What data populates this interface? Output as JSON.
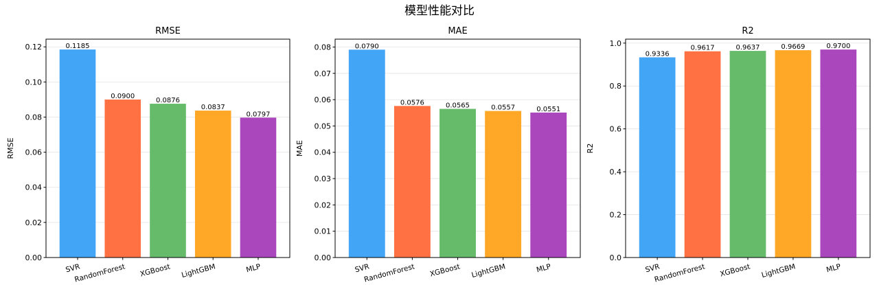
{
  "figure": {
    "suptitle": "模型性能对比"
  },
  "chart_data": [
    {
      "type": "bar",
      "title": "RMSE",
      "xlabel": "",
      "ylabel": "RMSE",
      "categories": [
        "SVR",
        "RandomForest",
        "XGBoost",
        "LightGBM",
        "MLP"
      ],
      "values": [
        0.1185,
        0.09,
        0.0876,
        0.0837,
        0.0797
      ],
      "value_labels": [
        "0.1185",
        "0.0900",
        "0.0876",
        "0.0837",
        "0.0797"
      ],
      "colors": [
        "#42a5f5",
        "#ff7043",
        "#66bb6a",
        "#ffa726",
        "#ab47bc"
      ],
      "ylim": [
        0,
        0.1244
      ],
      "yticks": [
        0,
        0.02,
        0.04,
        0.06,
        0.08,
        0.1,
        0.12
      ],
      "ytick_labels": [
        "0.00",
        "0.02",
        "0.04",
        "0.06",
        "0.08",
        "0.10",
        "0.12"
      ],
      "grid": "y"
    },
    {
      "type": "bar",
      "title": "MAE",
      "xlabel": "",
      "ylabel": "MAE",
      "categories": [
        "SVR",
        "RandomForest",
        "XGBoost",
        "LightGBM",
        "MLP"
      ],
      "values": [
        0.079,
        0.0576,
        0.0565,
        0.0557,
        0.0551
      ],
      "value_labels": [
        "0.0790",
        "0.0576",
        "0.0565",
        "0.0557",
        "0.0551"
      ],
      "colors": [
        "#42a5f5",
        "#ff7043",
        "#66bb6a",
        "#ffa726",
        "#ab47bc"
      ],
      "ylim": [
        0,
        0.083
      ],
      "yticks": [
        0,
        0.01,
        0.02,
        0.03,
        0.04,
        0.05,
        0.06,
        0.07,
        0.08
      ],
      "ytick_labels": [
        "0.00",
        "0.01",
        "0.02",
        "0.03",
        "0.04",
        "0.05",
        "0.06",
        "0.07",
        "0.08"
      ],
      "grid": "y"
    },
    {
      "type": "bar",
      "title": "R2",
      "xlabel": "",
      "ylabel": "R2",
      "categories": [
        "SVR",
        "RandomForest",
        "XGBoost",
        "LightGBM",
        "MLP"
      ],
      "values": [
        0.9336,
        0.9617,
        0.9637,
        0.9669,
        0.97
      ],
      "value_labels": [
        "0.9336",
        "0.9617",
        "0.9637",
        "0.9669",
        "0.9700"
      ],
      "colors": [
        "#42a5f5",
        "#ff7043",
        "#66bb6a",
        "#ffa726",
        "#ab47bc"
      ],
      "ylim": [
        0,
        1.0185
      ],
      "yticks": [
        0,
        0.2,
        0.4,
        0.6,
        0.8,
        1.0
      ],
      "ytick_labels": [
        "0.0",
        "0.2",
        "0.4",
        "0.6",
        "0.8",
        "1.0"
      ],
      "grid": "y"
    }
  ]
}
